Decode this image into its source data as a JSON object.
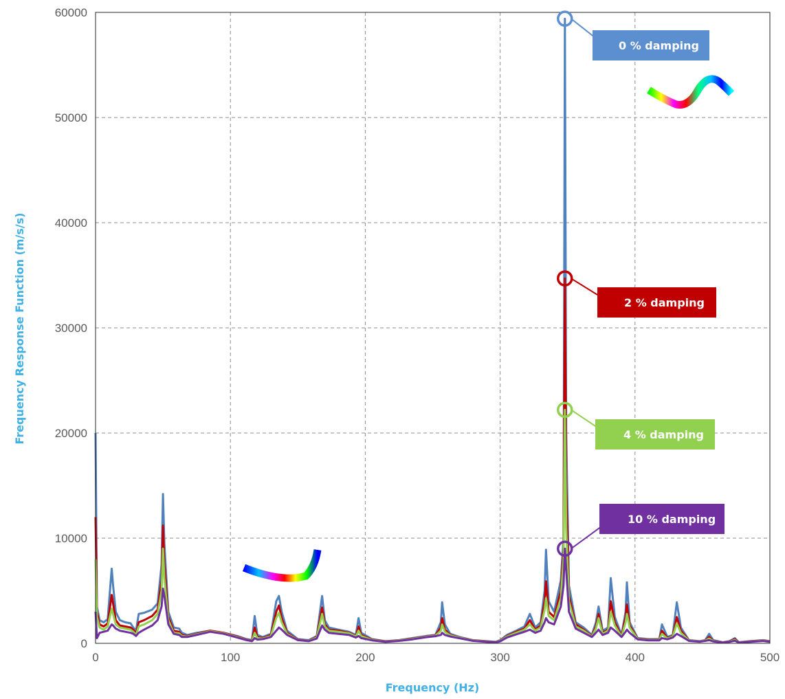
{
  "chart_data": {
    "type": "line",
    "xlabel": "Frequency (Hz)",
    "ylabel": "Frequency Response Function (m/s/s)",
    "xlim": [
      0,
      500
    ],
    "ylim": [
      0,
      60000
    ],
    "xticks": [
      0,
      100,
      200,
      300,
      400,
      500
    ],
    "yticks": [
      0,
      10000,
      20000,
      30000,
      40000,
      50000,
      60000
    ],
    "grid": true,
    "axis_title_color": "#41B0E4",
    "series": [
      {
        "name": "0 % damping",
        "color": "#4F81BD",
        "x": [
          0,
          1,
          3,
          6,
          9,
          12,
          13,
          15,
          18,
          22,
          26,
          28,
          30,
          32,
          36,
          42,
          46,
          49,
          50,
          51,
          54,
          58,
          62,
          64,
          68,
          75,
          85,
          95,
          105,
          112,
          116,
          118,
          120,
          124,
          130,
          134,
          136,
          138,
          142,
          150,
          158,
          164,
          168,
          170,
          173,
          180,
          188,
          193,
          195,
          197,
          205,
          215,
          225,
          235,
          245,
          252,
          256,
          257,
          259,
          263,
          270,
          280,
          290,
          297,
          300,
          305,
          312,
          318,
          322,
          326,
          330,
          333,
          334,
          336,
          340,
          345,
          347,
          348,
          349,
          351,
          356,
          362,
          368,
          371,
          373,
          376,
          380,
          382,
          385,
          390,
          393,
          394,
          396,
          402,
          410,
          418,
          420,
          424,
          428,
          431,
          434,
          440,
          448,
          452,
          455,
          458,
          465,
          470,
          474,
          477,
          485,
          495,
          500
        ],
        "y": [
          20000,
          3500,
          2200,
          2000,
          2300,
          7100,
          5500,
          3000,
          2200,
          2000,
          1900,
          1500,
          1200,
          2800,
          2900,
          3200,
          3800,
          7500,
          14200,
          9500,
          3000,
          1500,
          1400,
          1000,
          800,
          1000,
          1200,
          1000,
          700,
          400,
          300,
          2600,
          800,
          600,
          900,
          4000,
          4500,
          3000,
          1200,
          400,
          300,
          700,
          4500,
          2200,
          1500,
          1300,
          1100,
          800,
          2400,
          1000,
          400,
          200,
          300,
          500,
          700,
          800,
          2000,
          3900,
          1800,
          900,
          600,
          300,
          200,
          150,
          300,
          800,
          1200,
          1600,
          2800,
          1500,
          2000,
          5000,
          8900,
          4000,
          3000,
          6000,
          10000,
          59400,
          20000,
          5500,
          2000,
          1500,
          800,
          2000,
          3500,
          1200,
          1500,
          6200,
          2500,
          800,
          3000,
          5800,
          2000,
          500,
          400,
          400,
          1800,
          600,
          800,
          3900,
          1500,
          300,
          200,
          300,
          900,
          300,
          100,
          200,
          500,
          100,
          200,
          300,
          200
        ]
      },
      {
        "name": "2 % damping",
        "color": "#C00000",
        "x": [
          0,
          1,
          3,
          6,
          9,
          12,
          13,
          15,
          18,
          22,
          26,
          28,
          30,
          32,
          36,
          42,
          46,
          49,
          50,
          51,
          54,
          58,
          62,
          64,
          68,
          75,
          85,
          95,
          105,
          112,
          116,
          118,
          120,
          124,
          130,
          134,
          136,
          138,
          142,
          150,
          158,
          164,
          168,
          170,
          173,
          180,
          188,
          193,
          195,
          197,
          205,
          215,
          225,
          235,
          245,
          252,
          256,
          257,
          259,
          263,
          270,
          280,
          290,
          297,
          300,
          305,
          312,
          318,
          322,
          326,
          330,
          333,
          334,
          336,
          340,
          345,
          347,
          348,
          349,
          351,
          356,
          362,
          368,
          371,
          373,
          376,
          380,
          382,
          385,
          390,
          393,
          394,
          396,
          402,
          410,
          418,
          420,
          424,
          428,
          431,
          434,
          440,
          448,
          452,
          455,
          458,
          465,
          470,
          474,
          477,
          485,
          495,
          500
        ],
        "y": [
          12000,
          3000,
          1800,
          1600,
          1900,
          4600,
          3800,
          2200,
          1700,
          1600,
          1500,
          1300,
          900,
          2000,
          2200,
          2600,
          3200,
          6000,
          11200,
          7500,
          2500,
          1200,
          1100,
          800,
          700,
          900,
          1200,
          1000,
          650,
          350,
          250,
          1500,
          600,
          500,
          800,
          3000,
          3600,
          2400,
          1000,
          350,
          250,
          600,
          3400,
          1800,
          1300,
          1200,
          1000,
          700,
          1600,
          800,
          350,
          180,
          280,
          450,
          650,
          750,
          1500,
          2400,
          1300,
          800,
          550,
          280,
          180,
          120,
          250,
          700,
          1100,
          1400,
          2200,
          1300,
          1700,
          4000,
          5900,
          3000,
          2500,
          5000,
          9000,
          34700,
          15000,
          4500,
          1800,
          1300,
          700,
          1600,
          2800,
          1000,
          1300,
          4000,
          2000,
          700,
          2500,
          3700,
          1700,
          450,
          350,
          350,
          1200,
          500,
          700,
          2500,
          1200,
          280,
          180,
          280,
          600,
          250,
          90,
          180,
          400,
          90,
          180,
          280,
          180
        ]
      },
      {
        "name": "4 % damping",
        "color": "#92D050",
        "x": [
          0,
          1,
          3,
          6,
          9,
          12,
          13,
          15,
          18,
          22,
          26,
          28,
          30,
          32,
          36,
          42,
          46,
          49,
          50,
          51,
          54,
          58,
          62,
          64,
          68,
          75,
          85,
          95,
          105,
          112,
          116,
          118,
          120,
          124,
          130,
          134,
          136,
          138,
          142,
          150,
          158,
          164,
          168,
          170,
          173,
          180,
          188,
          193,
          195,
          197,
          205,
          215,
          225,
          235,
          245,
          252,
          256,
          257,
          259,
          263,
          270,
          280,
          290,
          297,
          300,
          305,
          312,
          318,
          322,
          326,
          330,
          333,
          334,
          336,
          340,
          345,
          347,
          348,
          349,
          351,
          356,
          362,
          368,
          371,
          373,
          376,
          380,
          382,
          385,
          390,
          393,
          394,
          396,
          402,
          410,
          418,
          420,
          424,
          428,
          431,
          434,
          440,
          448,
          452,
          455,
          458,
          465,
          470,
          474,
          477,
          485,
          495,
          500
        ],
        "y": [
          8000,
          2500,
          1500,
          1300,
          1600,
          3300,
          2800,
          1800,
          1500,
          1400,
          1300,
          1100,
          800,
          1600,
          1800,
          2200,
          2800,
          5000,
          9000,
          6200,
          2200,
          1000,
          950,
          700,
          650,
          850,
          1150,
          950,
          600,
          320,
          220,
          1000,
          500,
          450,
          700,
          2400,
          2900,
          2000,
          900,
          320,
          230,
          550,
          2800,
          1600,
          1200,
          1100,
          950,
          650,
          1200,
          700,
          320,
          160,
          260,
          420,
          620,
          720,
          1200,
          1800,
          1100,
          750,
          520,
          260,
          160,
          110,
          220,
          650,
          1000,
          1300,
          1800,
          1200,
          1500,
          3200,
          4300,
          2600,
          2200,
          4300,
          8000,
          22200,
          11000,
          4000,
          1600,
          1200,
          650,
          1400,
          2400,
          900,
          1200,
          3000,
          1700,
          650,
          2000,
          2800,
          1500,
          420,
          320,
          320,
          900,
          450,
          650,
          1900,
          1000,
          260,
          170,
          260,
          450,
          220,
          80,
          160,
          320,
          80,
          160,
          260,
          160
        ]
      },
      {
        "name": "10 % damping",
        "color": "#7030A0",
        "x": [
          0,
          1,
          3,
          6,
          9,
          12,
          13,
          15,
          18,
          22,
          26,
          28,
          30,
          32,
          36,
          42,
          46,
          49,
          50,
          51,
          54,
          58,
          62,
          64,
          68,
          75,
          85,
          95,
          105,
          112,
          116,
          118,
          120,
          124,
          130,
          134,
          136,
          138,
          142,
          150,
          158,
          164,
          168,
          170,
          173,
          180,
          188,
          193,
          195,
          197,
          205,
          215,
          225,
          235,
          245,
          252,
          256,
          257,
          259,
          263,
          270,
          280,
          290,
          297,
          300,
          305,
          312,
          318,
          322,
          326,
          330,
          333,
          334,
          336,
          340,
          345,
          347,
          348,
          349,
          351,
          356,
          362,
          368,
          371,
          373,
          376,
          380,
          382,
          385,
          390,
          393,
          394,
          396,
          402,
          410,
          418,
          420,
          424,
          428,
          431,
          434,
          440,
          448,
          452,
          455,
          458,
          465,
          470,
          474,
          477,
          485,
          495,
          500
        ],
        "y": [
          3000,
          500,
          1000,
          1100,
          1200,
          1800,
          1700,
          1400,
          1200,
          1100,
          1000,
          900,
          700,
          1000,
          1300,
          1700,
          2200,
          3500,
          5200,
          4500,
          1800,
          900,
          800,
          600,
          600,
          800,
          1100,
          900,
          550,
          300,
          200,
          500,
          350,
          400,
          600,
          1200,
          1500,
          1300,
          800,
          300,
          200,
          450,
          1700,
          1300,
          1000,
          900,
          800,
          550,
          700,
          500,
          280,
          140,
          230,
          380,
          580,
          680,
          800,
          1000,
          800,
          650,
          480,
          230,
          140,
          100,
          180,
          550,
          850,
          1100,
          1300,
          1000,
          1200,
          2000,
          2400,
          2000,
          1800,
          3500,
          5500,
          9000,
          7000,
          3000,
          1400,
          1000,
          600,
          1000,
          1300,
          800,
          1000,
          1500,
          1200,
          600,
          1100,
          1300,
          1000,
          380,
          280,
          280,
          500,
          380,
          550,
          900,
          700,
          230,
          150,
          230,
          300,
          180,
          70,
          140,
          250,
          70,
          140,
          230,
          140
        ]
      }
    ],
    "callouts": [
      {
        "label": "0 % damping",
        "x": 348,
        "y": 59400,
        "color": "#5B8FD0"
      },
      {
        "label": "2 % damping",
        "x": 348,
        "y": 34700,
        "color": "#C00000"
      },
      {
        "label": "4 % damping",
        "x": 348,
        "y": 22200,
        "color": "#92D050"
      },
      {
        "label": "10 % damping",
        "x": 348,
        "y": 9000,
        "color": "#7030A0"
      }
    ]
  }
}
